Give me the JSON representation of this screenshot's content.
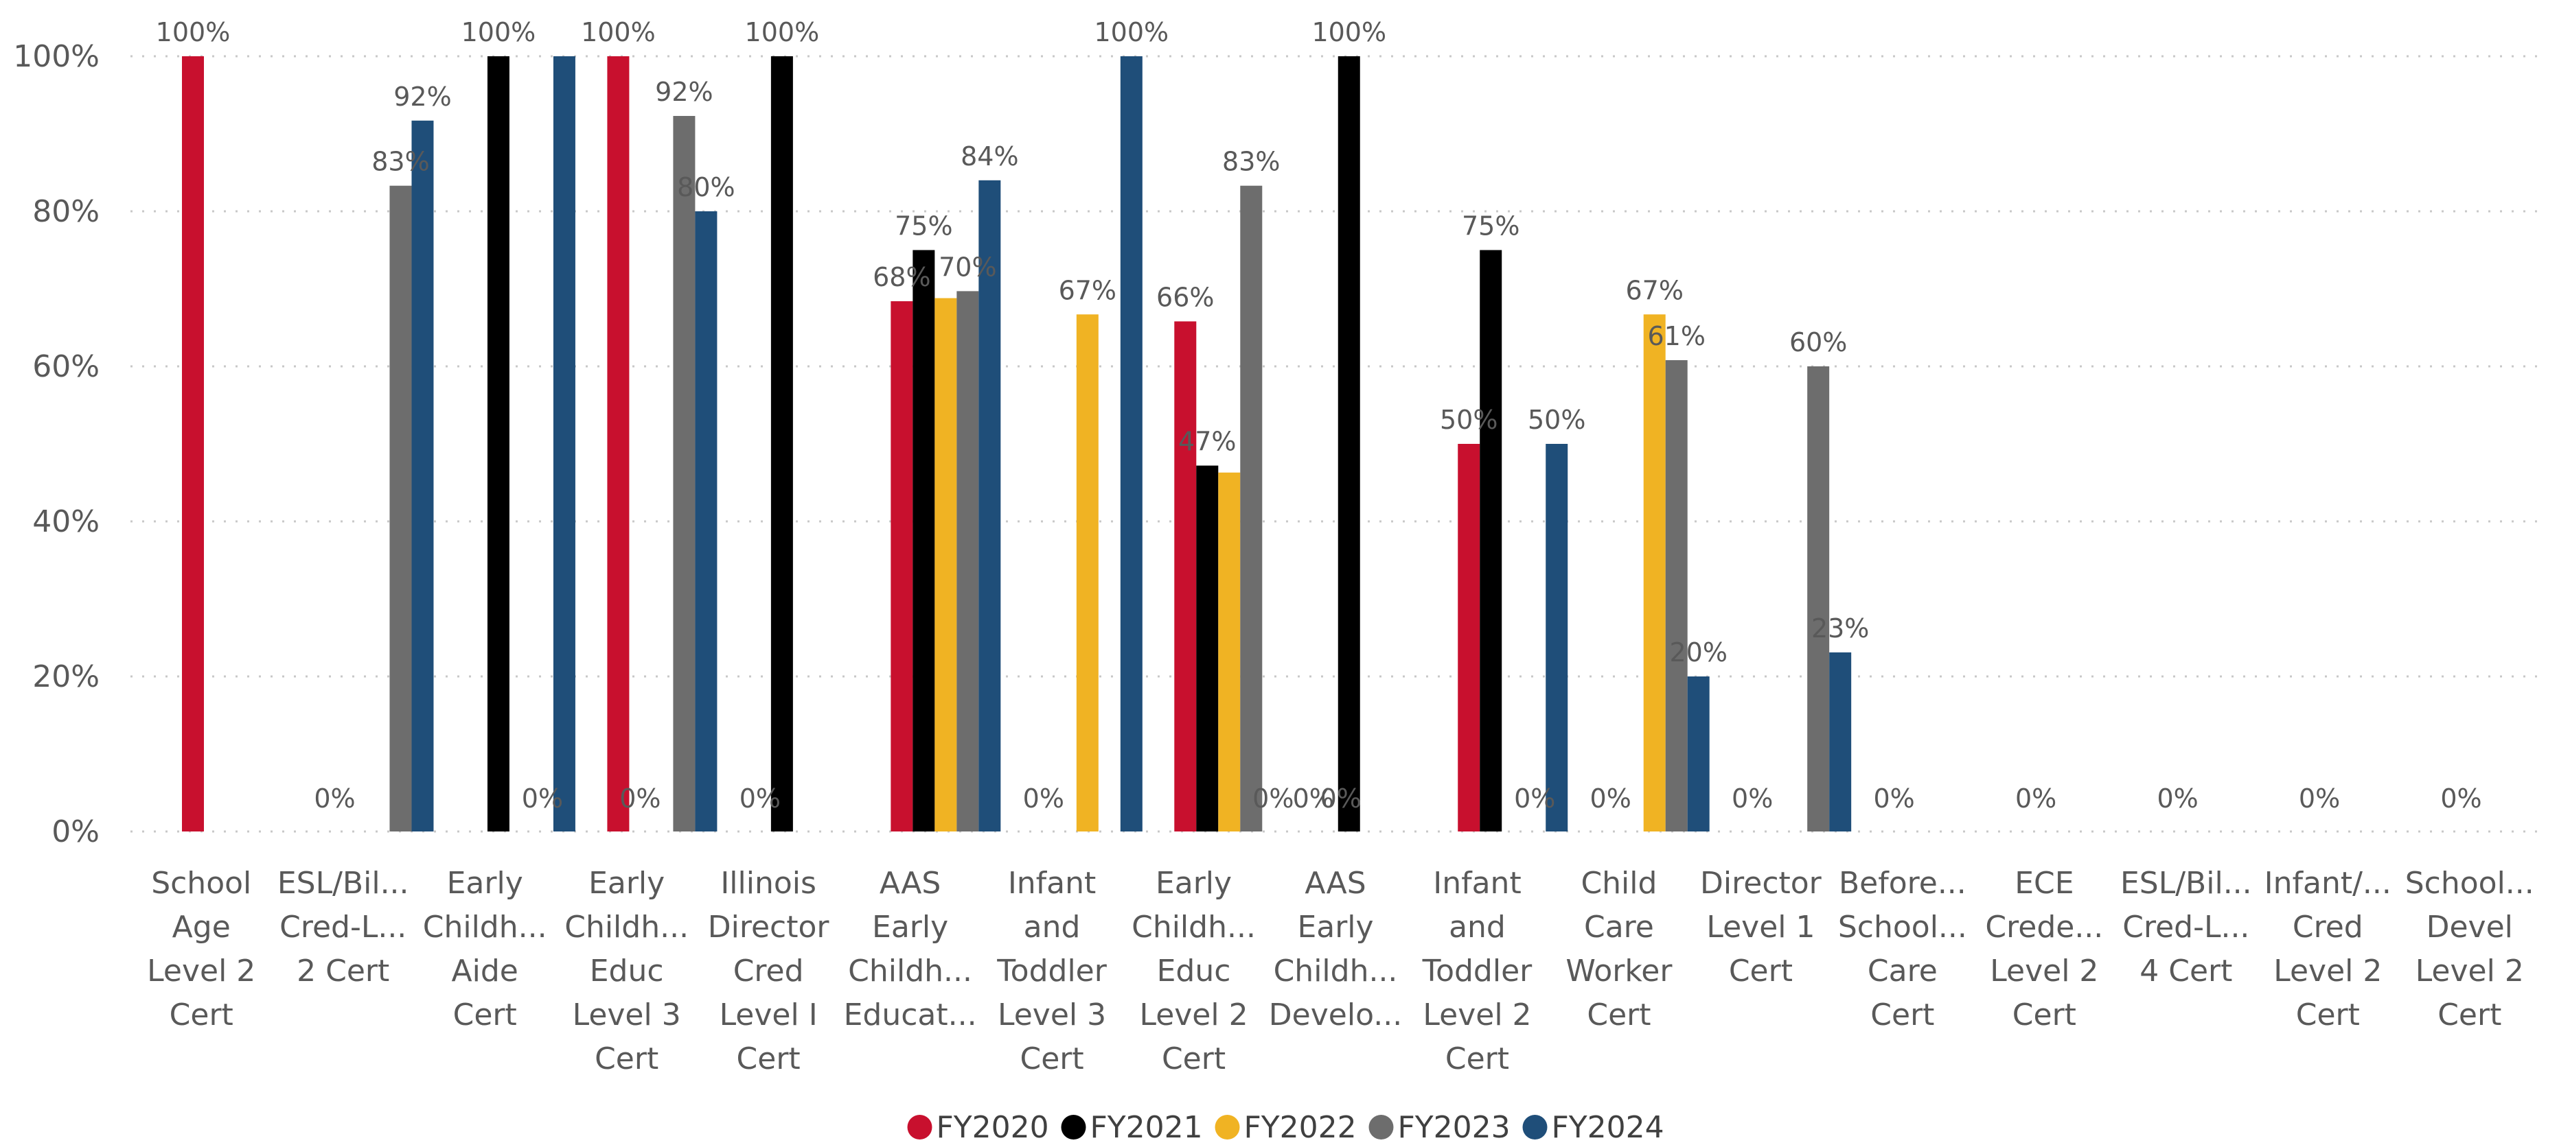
{
  "chart_data": {
    "type": "bar",
    "categories": [
      [
        "School",
        "Age",
        "Level 2",
        "Cert"
      ],
      [
        "ESL/Bil...",
        "Cred-L...",
        "2 Cert"
      ],
      [
        "Early",
        "Childh...",
        "Aide",
        "Cert"
      ],
      [
        "Early",
        "Childh...",
        "Educ",
        "Level 3",
        "Cert"
      ],
      [
        "Illinois",
        "Director",
        "Cred",
        "Level I",
        "Cert"
      ],
      [
        "AAS",
        "Early",
        "Childh...",
        "Educat..."
      ],
      [
        "Infant",
        "and",
        "Toddler",
        "Level 3",
        "Cert"
      ],
      [
        "Early",
        "Childh...",
        "Educ",
        "Level 2",
        "Cert"
      ],
      [
        "AAS",
        "Early",
        "Childh...",
        "Develo..."
      ],
      [
        "Infant",
        "and",
        "Toddler",
        "Level 2",
        "Cert"
      ],
      [
        "Child",
        "Care",
        "Worker",
        "Cert"
      ],
      [
        "Director",
        "Level 1",
        "Cert"
      ],
      [
        "Before...",
        "School...",
        "Care",
        "Cert"
      ],
      [
        "ECE",
        "Crede...",
        "Level 2",
        "Cert"
      ],
      [
        "ESL/Bil...",
        "Cred-L...",
        "4 Cert"
      ],
      [
        "Infant/...",
        "Cred",
        "Level 2",
        "Cert"
      ],
      [
        "School...",
        "Devel",
        "Level 2",
        "Cert"
      ]
    ],
    "series": [
      {
        "name": "FY2020",
        "color": "#C8102E",
        "values": [
          100,
          null,
          null,
          100,
          null,
          68.4,
          null,
          65.8,
          null,
          50,
          null,
          null,
          null,
          null,
          null,
          null,
          null
        ]
      },
      {
        "name": "FY2021",
        "color": "#000000",
        "values": [
          null,
          null,
          100,
          null,
          100,
          75,
          null,
          47.2,
          100,
          75,
          null,
          null,
          null,
          null,
          null,
          null,
          null
        ]
      },
      {
        "name": "FY2022",
        "color": "#F0B323",
        "values": [
          null,
          null,
          null,
          null,
          null,
          68.8,
          66.7,
          46.3,
          null,
          null,
          66.7,
          null,
          null,
          null,
          null,
          null,
          null
        ]
      },
      {
        "name": "FY2023",
        "color": "#6D6D6D",
        "values": [
          null,
          83.3,
          null,
          92.3,
          null,
          69.7,
          null,
          83.3,
          null,
          null,
          60.8,
          60,
          null,
          null,
          null,
          null,
          null
        ]
      },
      {
        "name": "FY2024",
        "color": "#1F4E79",
        "values": [
          null,
          91.7,
          100,
          80,
          null,
          84,
          100,
          null,
          null,
          50,
          20,
          23.1,
          null,
          null,
          null,
          null,
          null
        ]
      }
    ],
    "data_labels": [
      [
        {
          "text": "100%",
          "series": 0
        }
      ],
      [
        {
          "text": "0%",
          "series": 0
        },
        {
          "text": "83%",
          "series": 3
        },
        {
          "text": "92%",
          "series": 4
        }
      ],
      [
        {
          "text": "100%",
          "series": 1
        },
        {
          "text": "0%",
          "series": 3
        }
      ],
      [
        {
          "text": "100%",
          "series": 0
        },
        {
          "text": "0%",
          "series": 1
        },
        {
          "text": "92%",
          "series": 3
        },
        {
          "text": "80%",
          "series": 4
        }
      ],
      [
        {
          "text": "0%",
          "series": 0
        },
        {
          "text": "100%",
          "series": 1
        }
      ],
      [
        {
          "text": "68%",
          "series": 0
        },
        {
          "text": "75%",
          "series": 1
        },
        {
          "text": "70%",
          "series": 3
        },
        {
          "text": "84%",
          "series": 4
        }
      ],
      [
        {
          "text": "0%",
          "series": 0
        },
        {
          "text": "67%",
          "series": 2
        },
        {
          "text": "100%",
          "series": 4
        }
      ],
      [
        {
          "text": "66%",
          "series": 0
        },
        {
          "text": "47%",
          "series": 1
        },
        {
          "text": "83%",
          "series": 3
        },
        {
          "text": "0%",
          "series": 4
        }
      ],
      [
        {
          "text": "0%",
          "series": 0
        },
        {
          "text": "0%",
          "series": 0
        },
        {
          "text": "100%",
          "series": 1
        }
      ],
      [
        {
          "text": "50%",
          "series": 0
        },
        {
          "text": "75%",
          "series": 1
        },
        {
          "text": "0%",
          "series": 3
        },
        {
          "text": "50%",
          "series": 4
        }
      ],
      [
        {
          "text": "0%",
          "series": 0
        },
        {
          "text": "67%",
          "series": 2
        },
        {
          "text": "61%",
          "series": 3
        },
        {
          "text": "20%",
          "series": 4
        }
      ],
      [
        {
          "text": "0%",
          "series": 0
        },
        {
          "text": "60%",
          "series": 3
        },
        {
          "text": "23%",
          "series": 4
        }
      ],
      [
        {
          "text": "0%",
          "series": 0
        }
      ],
      [
        {
          "text": "0%",
          "series": 0
        }
      ],
      [
        {
          "text": "0%",
          "series": 0
        }
      ],
      [
        {
          "text": "0%",
          "series": 0
        }
      ],
      [
        {
          "text": "0%",
          "series": 0
        }
      ]
    ],
    "yticks": [
      "0%",
      "20%",
      "40%",
      "60%",
      "80%",
      "100%"
    ],
    "ylim": [
      0,
      100
    ],
    "grid": true,
    "legend_position": "bottom"
  }
}
